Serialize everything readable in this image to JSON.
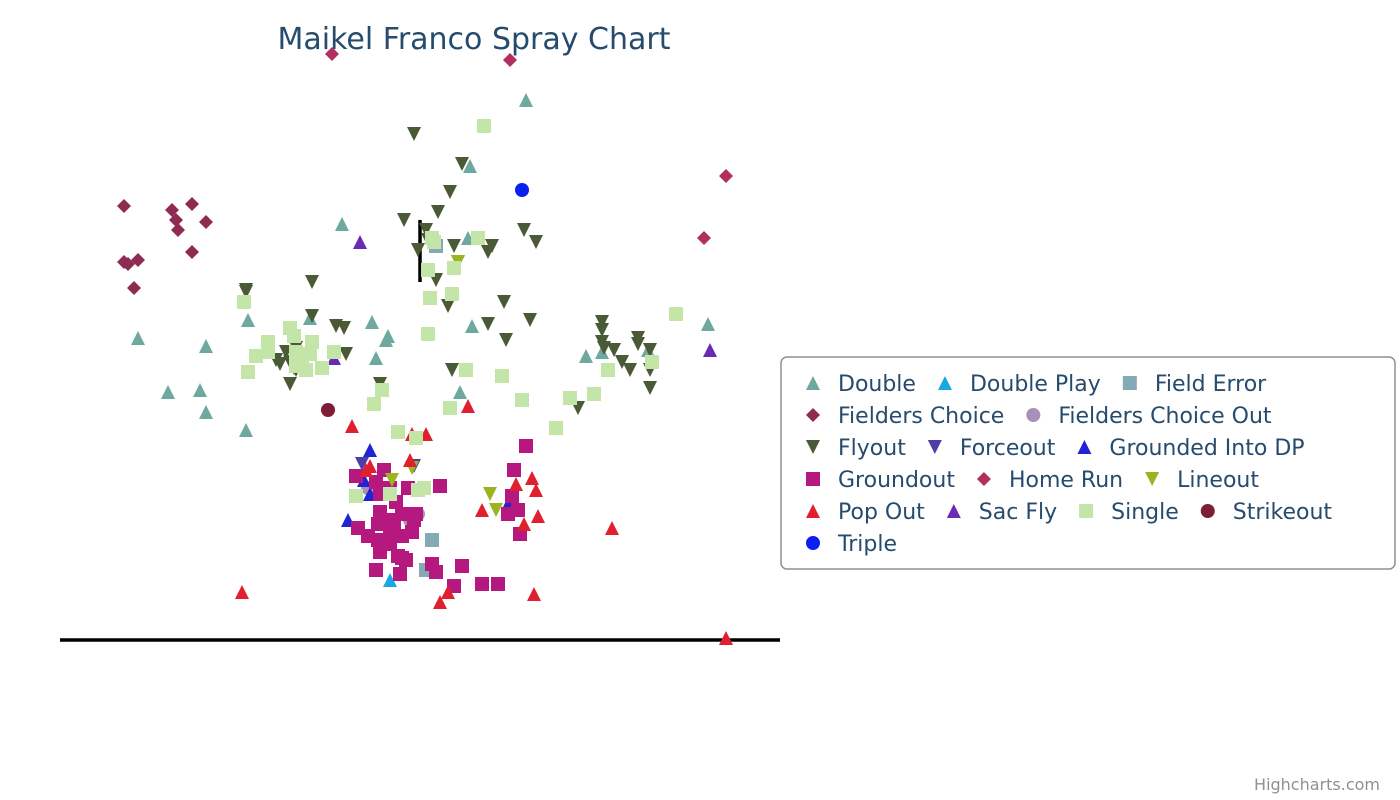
{
  "chart_data": {
    "type": "scatter",
    "title": "Maikel Franco Spray Chart",
    "credits": "Highcharts.com",
    "grid": false,
    "legend_position": "right",
    "axis_ranges": {
      "x": [
        -420,
        980
      ],
      "y": [
        -160,
        640
      ]
    },
    "foul_lines": [
      [
        [
          -360,
          360
        ],
        [
          0,
          0
        ]
      ],
      [
        [
          0,
          0
        ],
        [
          420,
          358
        ]
      ]
    ],
    "series": [
      {
        "name": "Double",
        "marker": "triangle",
        "color": "#6ea89e",
        "points": [
          [
            -282,
            302
          ],
          [
            -214,
            294
          ],
          [
            -252,
            248
          ],
          [
            -220,
            250
          ],
          [
            -214,
            228
          ],
          [
            -174,
            210
          ],
          [
            -172,
            320
          ],
          [
            -110,
            322
          ],
          [
            -78,
            416
          ],
          [
            -44,
            282
          ],
          [
            -32,
            304
          ],
          [
            -34,
            300
          ],
          [
            -48,
            318
          ],
          [
            48,
            402
          ],
          [
            50,
            474
          ],
          [
            52,
            314
          ],
          [
            40,
            248
          ],
          [
            106,
            540
          ],
          [
            166,
            284
          ],
          [
            182,
            288
          ],
          [
            228,
            290
          ],
          [
            288,
            316
          ]
        ]
      },
      {
        "name": "Double Play",
        "color": "#1aa8e0",
        "marker": "triangle",
        "points": [
          [
            -30,
            60
          ]
        ]
      },
      {
        "name": "Field Error",
        "color": "#83aab5",
        "marker": "square",
        "points": [
          [
            12,
            100
          ],
          [
            6,
            70
          ],
          [
            16,
            394
          ]
        ]
      },
      {
        "name": "Fielders Choice",
        "color": "#8f2a52",
        "marker": "diamond",
        "points": [
          [
            -296,
            434
          ],
          [
            -248,
            430
          ],
          [
            -244,
            420
          ],
          [
            -242,
            410
          ],
          [
            -228,
            436
          ],
          [
            -214,
            418
          ],
          [
            -228,
            388
          ],
          [
            -296,
            378
          ],
          [
            -292,
            376
          ],
          [
            -282,
            380
          ],
          [
            -286,
            352
          ]
        ]
      },
      {
        "name": "Fielders Choice Out",
        "color": "#a990b8",
        "marker": "circle",
        "points": [
          [
            -52,
            152
          ],
          [
            -10,
            120
          ],
          [
            -2,
            126
          ]
        ]
      },
      {
        "name": "Flyout",
        "color": "#4b5a36",
        "marker": "triangle-down",
        "points": [
          [
            -6,
            506
          ],
          [
            42,
            476
          ],
          [
            30,
            448
          ],
          [
            18,
            428
          ],
          [
            6,
            410
          ],
          [
            -16,
            420
          ],
          [
            8,
            400
          ],
          [
            -2,
            390
          ],
          [
            34,
            394
          ],
          [
            38,
            378
          ],
          [
            68,
            388
          ],
          [
            72,
            394
          ],
          [
            104,
            410
          ],
          [
            116,
            398
          ],
          [
            16,
            360
          ],
          [
            28,
            334
          ],
          [
            -108,
            358
          ],
          [
            -174,
            350
          ],
          [
            -174,
            348
          ],
          [
            -108,
            324
          ],
          [
            -84,
            314
          ],
          [
            -76,
            312
          ],
          [
            -74,
            286
          ],
          [
            -134,
            288
          ],
          [
            -140,
            276
          ],
          [
            -144,
            280
          ],
          [
            -124,
            292
          ],
          [
            -130,
            278
          ],
          [
            -126,
            272
          ],
          [
            -124,
            270
          ],
          [
            -120,
            276
          ],
          [
            -40,
            256
          ],
          [
            -130,
            256
          ],
          [
            32,
            270
          ],
          [
            68,
            316
          ],
          [
            84,
            338
          ],
          [
            86,
            300
          ],
          [
            110,
            320
          ],
          [
            182,
            318
          ],
          [
            182,
            310
          ],
          [
            184,
            292
          ],
          [
            182,
            298
          ],
          [
            194,
            290
          ],
          [
            202,
            278
          ],
          [
            210,
            270
          ],
          [
            218,
            296
          ],
          [
            218,
            302
          ],
          [
            230,
            290
          ],
          [
            188,
            270
          ],
          [
            158,
            232
          ],
          [
            230,
            252
          ],
          [
            230,
            270
          ]
        ]
      },
      {
        "name": "Forceout",
        "color": "#4e3fa8",
        "marker": "triangle-down",
        "points": [
          [
            -58,
            176
          ],
          [
            -6,
            174
          ]
        ]
      },
      {
        "name": "Grounded Into DP",
        "color": "#2323d6",
        "marker": "triangle",
        "points": [
          [
            -50,
            190
          ],
          [
            -50,
            146
          ],
          [
            -72,
            120
          ],
          [
            90,
            140
          ],
          [
            -56,
            160
          ]
        ]
      },
      {
        "name": "Groundout",
        "color": "#b5197f",
        "marker": "square",
        "points": [
          [
            -64,
            164
          ],
          [
            -44,
            158
          ],
          [
            -40,
            146
          ],
          [
            -30,
            152
          ],
          [
            -12,
            152
          ],
          [
            -2,
            150
          ],
          [
            20,
            154
          ],
          [
            -62,
            112
          ],
          [
            -42,
            116
          ],
          [
            -28,
            120
          ],
          [
            -18,
            126
          ],
          [
            -6,
            120
          ],
          [
            -30,
            108
          ],
          [
            -52,
            104
          ],
          [
            -42,
            100
          ],
          [
            -30,
            96
          ],
          [
            -18,
            104
          ],
          [
            -40,
            88
          ],
          [
            -22,
            84
          ],
          [
            -44,
            70
          ],
          [
            -18,
            82
          ],
          [
            -20,
            66
          ],
          [
            -14,
            80
          ],
          [
            12,
            76
          ],
          [
            16,
            68
          ],
          [
            34,
            54
          ],
          [
            42,
            74
          ],
          [
            62,
            56
          ],
          [
            78,
            56
          ],
          [
            92,
            144
          ],
          [
            98,
            130
          ],
          [
            88,
            126
          ],
          [
            100,
            106
          ],
          [
            94,
            170
          ],
          [
            106,
            194
          ],
          [
            -36,
            170
          ],
          [
            -24,
            138
          ],
          [
            -4,
            126
          ],
          [
            -26,
            116
          ],
          [
            -30,
            100
          ],
          [
            -40,
            128
          ],
          [
            -8,
            108
          ]
        ]
      },
      {
        "name": "Home Run",
        "color": "#b3305e",
        "marker": "diamond",
        "points": [
          [
            -88,
            586
          ],
          [
            90,
            580
          ],
          [
            306,
            464
          ],
          [
            284,
            402
          ]
        ]
      },
      {
        "name": "Lineout",
        "color": "#9ab520",
        "marker": "triangle-down",
        "points": [
          [
            -8,
            172
          ],
          [
            38,
            378
          ],
          [
            70,
            146
          ],
          [
            76,
            130
          ],
          [
            -28,
            160
          ]
        ]
      },
      {
        "name": "Pop Out",
        "color": "#e0202e",
        "marker": "triangle",
        "points": [
          [
            -178,
            48
          ],
          [
            -68,
            214
          ],
          [
            -8,
            206
          ],
          [
            6,
            206
          ],
          [
            48,
            234
          ],
          [
            -10,
            180
          ],
          [
            -54,
            170
          ],
          [
            62,
            130
          ],
          [
            96,
            156
          ],
          [
            112,
            162
          ],
          [
            116,
            150
          ],
          [
            118,
            124
          ],
          [
            104,
            116
          ],
          [
            192,
            112
          ],
          [
            20,
            38
          ],
          [
            28,
            48
          ],
          [
            114,
            46
          ],
          [
            306,
            2
          ],
          [
            -50,
            174
          ]
        ]
      },
      {
        "name": "Sac Fly",
        "color": "#6b2ab4",
        "marker": "triangle",
        "points": [
          [
            -60,
            398
          ],
          [
            -86,
            282
          ],
          [
            290,
            290
          ]
        ]
      },
      {
        "name": "Single",
        "color": "#c3e6a8",
        "marker": "square",
        "points": [
          [
            64,
            514
          ],
          [
            12,
            402
          ],
          [
            14,
            398
          ],
          [
            8,
            370
          ],
          [
            34,
            372
          ],
          [
            58,
            402
          ],
          [
            -176,
            338
          ],
          [
            -152,
            298
          ],
          [
            -130,
            312
          ],
          [
            -126,
            304
          ],
          [
            -108,
            298
          ],
          [
            -110,
            286
          ],
          [
            -124,
            288
          ],
          [
            -118,
            284
          ],
          [
            -164,
            284
          ],
          [
            -172,
            268
          ],
          [
            -152,
            288
          ],
          [
            -114,
            270
          ],
          [
            -124,
            274
          ],
          [
            -98,
            272
          ],
          [
            -86,
            288
          ],
          [
            10,
            342
          ],
          [
            32,
            346
          ],
          [
            8,
            306
          ],
          [
            46,
            270
          ],
          [
            -38,
            250
          ],
          [
            -46,
            236
          ],
          [
            -22,
            208
          ],
          [
            -4,
            202
          ],
          [
            30,
            232
          ],
          [
            82,
            264
          ],
          [
            102,
            240
          ],
          [
            136,
            212
          ],
          [
            150,
            242
          ],
          [
            174,
            246
          ],
          [
            188,
            270
          ],
          [
            232,
            278
          ],
          [
            256,
            326
          ],
          [
            -64,
            144
          ],
          [
            -30,
            146
          ],
          [
            -2,
            150
          ],
          [
            4,
            152
          ]
        ]
      },
      {
        "name": "Strikeout",
        "color": "#7f1c36",
        "marker": "circle",
        "points": [
          [
            -92,
            230
          ]
        ]
      },
      {
        "name": "Triple",
        "color": "#0a1ff0",
        "marker": "circle",
        "points": [
          [
            102,
            450
          ]
        ]
      }
    ]
  }
}
